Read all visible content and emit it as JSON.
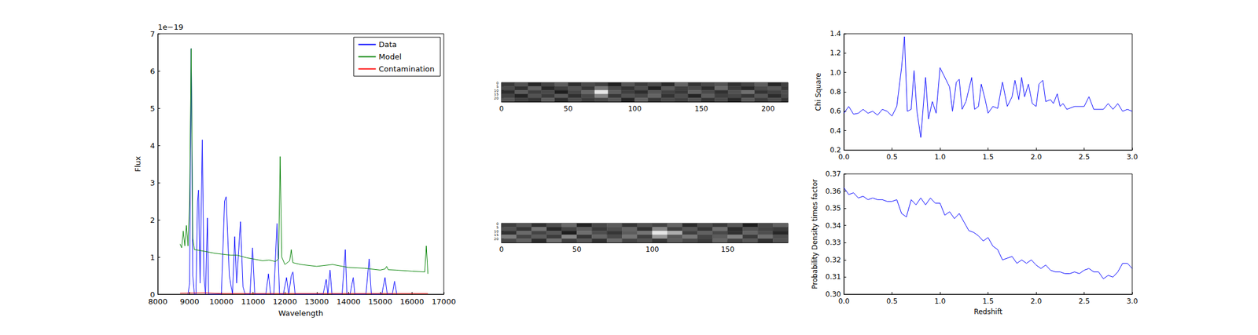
{
  "chart_data": [
    {
      "type": "line",
      "x_label": "Wavelength",
      "y_label": "Flux",
      "annotations": [
        "1e−19"
      ],
      "xlim": [
        8000,
        17000
      ],
      "xticks": [
        8000,
        9000,
        10000,
        11000,
        12000,
        13000,
        14000,
        15000,
        16000,
        17000
      ],
      "ylim": [
        0,
        7
      ],
      "yticks": [
        0,
        1,
        2,
        3,
        4,
        5,
        6,
        7
      ],
      "legend": "upper right",
      "grid": false,
      "series": [
        {
          "name": "Data",
          "color": "#0000ff",
          "x": [
            8950,
            9000,
            9050,
            9100,
            9150,
            9200,
            9250,
            9280,
            9330,
            9400,
            9450,
            9500,
            9560,
            9600,
            10000,
            10100,
            10150,
            10250,
            10350,
            10420,
            10480,
            10600,
            10680,
            10750,
            10900,
            10980,
            11050,
            11400,
            11480,
            11550,
            11650,
            11750,
            11830,
            11950,
            12050,
            12120,
            12200,
            12250,
            12320,
            13200,
            13300,
            13350,
            13420,
            13480,
            13800,
            13900,
            13950,
            14050,
            14150,
            14200,
            14550,
            14650,
            14720,
            15050,
            15150,
            15220,
            15380,
            15450,
            15520
          ],
          "values": [
            0,
            0.3,
            6.6,
            0.5,
            0,
            0,
            2.5,
            2.8,
            0.3,
            4.15,
            0.5,
            0,
            2.05,
            0,
            0,
            2.5,
            2.62,
            0.5,
            0,
            1.55,
            0.3,
            1.95,
            0.2,
            0,
            0,
            1.25,
            0,
            0,
            0.55,
            0,
            0,
            1.9,
            0,
            0,
            0.45,
            0,
            0.5,
            0.6,
            0,
            0,
            0.4,
            0,
            0.65,
            0,
            0,
            1.2,
            0,
            0,
            0.45,
            0,
            0,
            0.95,
            0,
            0,
            0.45,
            0,
            0,
            0.35,
            0
          ]
        },
        {
          "name": "Model",
          "color": "#008000",
          "x": [
            8700,
            8750,
            8800,
            8850,
            8900,
            8950,
            9000,
            9050,
            9100,
            9150,
            9300,
            9500,
            9800,
            10000,
            10300,
            10500,
            10800,
            11000,
            11300,
            11500,
            11700,
            11800,
            11850,
            11900,
            12000,
            12150,
            12200,
            12250,
            12500,
            13000,
            13500,
            14000,
            14500,
            15000,
            15150,
            15200,
            15250,
            15500,
            16000,
            16400,
            16450,
            16500
          ],
          "values": [
            1.35,
            1.25,
            1.7,
            1.3,
            1.85,
            1.3,
            2.5,
            6.6,
            1.5,
            1.2,
            1.18,
            1.15,
            1.1,
            1.08,
            1.05,
            1.05,
            0.98,
            0.95,
            0.9,
            0.92,
            0.88,
            0.95,
            3.7,
            1.0,
            0.8,
            0.9,
            1.2,
            0.85,
            0.8,
            0.75,
            0.8,
            0.72,
            0.7,
            0.65,
            0.68,
            0.75,
            0.66,
            0.65,
            0.62,
            0.6,
            1.3,
            0.55
          ]
        },
        {
          "name": "Contamination",
          "color": "#ff0000",
          "x": [
            8700,
            9500,
            10000,
            16500
          ],
          "values": [
            0.03,
            0.04,
            0.02,
            0.02
          ]
        }
      ]
    },
    {
      "type": "image",
      "xlim": [
        0,
        215
      ],
      "xticks": [
        0,
        50,
        100,
        150,
        200
      ],
      "ylim": [
        0,
        25
      ],
      "yticks": [
        0,
        5,
        10,
        15,
        20
      ],
      "x_edges": [
        0,
        10,
        20,
        30,
        40,
        50,
        60,
        70,
        80,
        90,
        100,
        110,
        120,
        130,
        140,
        150,
        160,
        170,
        180,
        190,
        200,
        210,
        215
      ],
      "y_edges": [
        0,
        5,
        10,
        15,
        20,
        25
      ],
      "cells": [
        [
          0.45,
          0.52,
          0.4,
          0.48,
          0.55,
          0.42,
          0.5,
          0.47,
          0.38,
          0.53,
          0.46,
          0.5,
          0.41,
          0.57,
          0.44,
          0.49,
          0.52,
          0.43,
          0.48,
          0.55,
          0.4,
          0.47
        ],
        [
          0.5,
          0.43,
          0.56,
          0.41,
          0.47,
          0.52,
          0.45,
          0.62,
          0.49,
          0.44,
          0.51,
          0.39,
          0.54,
          0.47,
          0.5,
          0.42,
          0.58,
          0.46,
          0.41,
          0.5,
          0.53,
          0.45
        ],
        [
          0.42,
          0.55,
          0.47,
          0.5,
          0.38,
          0.49,
          0.58,
          0.92,
          0.55,
          0.47,
          0.42,
          0.53,
          0.48,
          0.45,
          0.56,
          0.5,
          0.43,
          0.52,
          0.6,
          0.44,
          0.48,
          0.51
        ],
        [
          0.48,
          0.4,
          0.52,
          0.46,
          0.54,
          0.43,
          0.5,
          0.66,
          0.45,
          0.52,
          0.49,
          0.57,
          0.44,
          0.51,
          0.4,
          0.55,
          0.47,
          0.49,
          0.45,
          0.53,
          0.42,
          0.5
        ],
        [
          0.53,
          0.47,
          0.44,
          0.55,
          0.42,
          0.51,
          0.46,
          0.49,
          0.53,
          0.4,
          0.56,
          0.45,
          0.5,
          0.47,
          0.52,
          0.44,
          0.5,
          0.41,
          0.54,
          0.46,
          0.51,
          0.44
        ]
      ]
    },
    {
      "type": "image",
      "xlim": [
        0,
        190
      ],
      "xticks": [
        0,
        50,
        100,
        150
      ],
      "ylim": [
        0,
        25
      ],
      "yticks": [
        0,
        5,
        10,
        15,
        20
      ],
      "x_edges": [
        0,
        10,
        20,
        30,
        40,
        50,
        60,
        70,
        80,
        90,
        100,
        110,
        120,
        130,
        140,
        150,
        160,
        170,
        180,
        190
      ],
      "y_edges": [
        0,
        5,
        10,
        15,
        20,
        25
      ],
      "cells": [
        [
          0.47,
          0.52,
          0.44,
          0.5,
          0.56,
          0.41,
          0.49,
          0.53,
          0.45,
          0.51,
          0.48,
          0.55,
          0.43,
          0.5,
          0.46,
          0.52,
          0.4,
          0.49,
          0.54
        ],
        [
          0.51,
          0.45,
          0.58,
          0.42,
          0.48,
          0.53,
          0.46,
          0.5,
          0.55,
          0.44,
          0.62,
          0.47,
          0.52,
          0.45,
          0.57,
          0.43,
          0.51,
          0.48,
          0.46
        ],
        [
          0.44,
          0.56,
          0.48,
          0.52,
          0.4,
          0.57,
          0.5,
          0.45,
          0.53,
          0.58,
          0.82,
          0.7,
          0.47,
          0.54,
          0.49,
          0.44,
          0.55,
          0.5,
          0.42
        ],
        [
          0.6,
          0.48,
          0.53,
          0.46,
          0.62,
          0.45,
          0.55,
          0.49,
          0.58,
          0.47,
          0.66,
          0.52,
          0.59,
          0.48,
          0.53,
          0.61,
          0.46,
          0.57,
          0.5
        ],
        [
          0.49,
          0.54,
          0.43,
          0.57,
          0.47,
          0.52,
          0.44,
          0.56,
          0.48,
          0.51,
          0.45,
          0.53,
          0.49,
          0.46,
          0.55,
          0.48,
          0.52,
          0.44,
          0.51
        ]
      ]
    },
    {
      "type": "line",
      "y_label": "Chi Square",
      "xlim": [
        0,
        3
      ],
      "xticks": [
        {
          "value": 0,
          "label": "0.0"
        },
        0.5,
        {
          "value": 1,
          "label": "1.0"
        },
        1.5,
        {
          "value": 2,
          "label": "2.0"
        },
        2.5,
        {
          "value": 3,
          "label": "3.0"
        }
      ],
      "ylim": [
        0.2,
        1.4
      ],
      "yticks": [
        0.2,
        0.4,
        0.6,
        0.8,
        {
          "value": 1,
          "label": "1.0"
        },
        1.2,
        1.4
      ],
      "grid": false,
      "x": [
        0,
        0.05,
        0.1,
        0.15,
        0.2,
        0.25,
        0.3,
        0.35,
        0.4,
        0.45,
        0.5,
        0.55,
        0.6,
        0.63,
        0.66,
        0.7,
        0.73,
        0.76,
        0.8,
        0.85,
        0.88,
        0.92,
        0.96,
        1.0,
        1.05,
        1.1,
        1.13,
        1.17,
        1.2,
        1.23,
        1.27,
        1.33,
        1.36,
        1.4,
        1.43,
        1.47,
        1.5,
        1.55,
        1.6,
        1.65,
        1.7,
        1.75,
        1.78,
        1.82,
        1.85,
        1.88,
        1.92,
        1.96,
        2.0,
        2.03,
        2.07,
        2.1,
        2.15,
        2.18,
        2.22,
        2.25,
        2.28,
        2.32,
        2.4,
        2.5,
        2.55,
        2.6,
        2.7,
        2.75,
        2.8,
        2.85,
        2.9,
        2.95,
        3.0
      ],
      "series": [
        {
          "color": "#0000ff",
          "values": [
            0.58,
            0.65,
            0.57,
            0.58,
            0.62,
            0.58,
            0.6,
            0.56,
            0.62,
            0.6,
            0.55,
            0.65,
            1.05,
            1.37,
            0.6,
            0.62,
            1.02,
            0.6,
            0.33,
            0.95,
            0.52,
            0.7,
            0.58,
            1.05,
            0.95,
            0.85,
            0.6,
            0.9,
            0.93,
            0.62,
            0.7,
            0.95,
            0.62,
            0.65,
            0.88,
            0.72,
            0.58,
            0.65,
            0.63,
            0.9,
            0.65,
            0.75,
            0.92,
            0.72,
            0.95,
            0.75,
            0.88,
            0.68,
            0.65,
            0.88,
            0.92,
            0.7,
            0.72,
            0.68,
            0.78,
            0.65,
            0.68,
            0.62,
            0.65,
            0.65,
            0.75,
            0.62,
            0.62,
            0.68,
            0.62,
            0.68,
            0.6,
            0.62,
            0.6
          ]
        }
      ]
    },
    {
      "type": "line",
      "x_label": "Redshift",
      "y_label": "Probability Density times factor",
      "xlim": [
        0,
        3
      ],
      "xticks": [
        {
          "value": 0,
          "label": "0.0"
        },
        0.5,
        {
          "value": 1,
          "label": "1.0"
        },
        1.5,
        {
          "value": 2,
          "label": "2.0"
        },
        2.5,
        {
          "value": 3,
          "label": "3.0"
        }
      ],
      "ylim": [
        0.3,
        0.37
      ],
      "yticks": [
        {
          "value": 0.3,
          "label": "0.30"
        },
        0.31,
        0.32,
        0.33,
        0.34,
        0.35,
        0.36,
        0.37
      ],
      "grid": false,
      "x": [
        0,
        0.05,
        0.1,
        0.15,
        0.2,
        0.25,
        0.3,
        0.35,
        0.4,
        0.45,
        0.5,
        0.55,
        0.6,
        0.65,
        0.7,
        0.75,
        0.8,
        0.85,
        0.9,
        0.95,
        1.0,
        1.05,
        1.1,
        1.15,
        1.2,
        1.25,
        1.3,
        1.35,
        1.4,
        1.45,
        1.5,
        1.55,
        1.6,
        1.65,
        1.7,
        1.75,
        1.8,
        1.85,
        1.9,
        1.95,
        2.0,
        2.05,
        2.1,
        2.15,
        2.2,
        2.25,
        2.3,
        2.35,
        2.4,
        2.45,
        2.5,
        2.55,
        2.6,
        2.65,
        2.7,
        2.75,
        2.8,
        2.85,
        2.9,
        2.95,
        3.0
      ],
      "series": [
        {
          "color": "#0000ff",
          "values": [
            0.362,
            0.358,
            0.359,
            0.356,
            0.357,
            0.355,
            0.356,
            0.355,
            0.355,
            0.354,
            0.354,
            0.355,
            0.347,
            0.345,
            0.355,
            0.352,
            0.356,
            0.352,
            0.356,
            0.353,
            0.353,
            0.346,
            0.348,
            0.344,
            0.347,
            0.342,
            0.337,
            0.336,
            0.334,
            0.331,
            0.333,
            0.328,
            0.326,
            0.32,
            0.321,
            0.322,
            0.318,
            0.32,
            0.318,
            0.32,
            0.317,
            0.315,
            0.317,
            0.314,
            0.313,
            0.313,
            0.312,
            0.312,
            0.313,
            0.312,
            0.314,
            0.315,
            0.313,
            0.313,
            0.309,
            0.311,
            0.31,
            0.313,
            0.318,
            0.318,
            0.315
          ]
        }
      ]
    }
  ]
}
